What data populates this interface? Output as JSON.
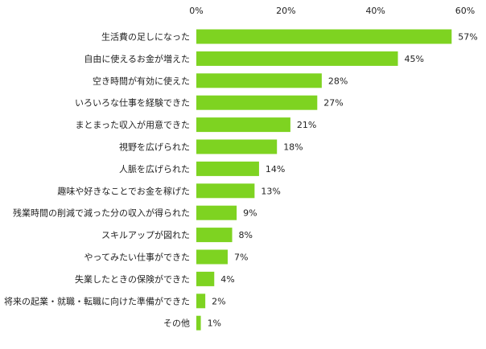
{
  "chart_data": {
    "type": "bar",
    "orientation": "horizontal",
    "categories": [
      "生活費の足しになった",
      "自由に使えるお金が増えた",
      "空き時間が有効に使えた",
      "いろいろな仕事を経験できた",
      "まとまった収入が用意できた",
      "視野を広げられた",
      "人脈を広げられた",
      "趣味や好きなことでお金を稼げた",
      "残業時間の削減で減った分の収入が得られた",
      "スキルアップが図れた",
      "やってみたい仕事ができた",
      "失業したときの保険ができた",
      "将来の起業・就職・転職に向けた準備ができた",
      "その他"
    ],
    "values": [
      57,
      45,
      28,
      27,
      21,
      18,
      14,
      13,
      9,
      8,
      7,
      4,
      2,
      1
    ],
    "value_labels": [
      "57%",
      "45%",
      "28%",
      "27%",
      "21%",
      "18%",
      "14%",
      "13%",
      "9%",
      "8%",
      "7%",
      "4%",
      "2%",
      "1%"
    ],
    "xlim": [
      0,
      60
    ],
    "ticks": [
      0,
      20,
      40,
      60
    ],
    "tick_labels": [
      "0%",
      "20%",
      "40%",
      "60%"
    ],
    "tick_position": "top",
    "grid": false,
    "bar_color": "#7ed321",
    "text_color": "#222222"
  }
}
